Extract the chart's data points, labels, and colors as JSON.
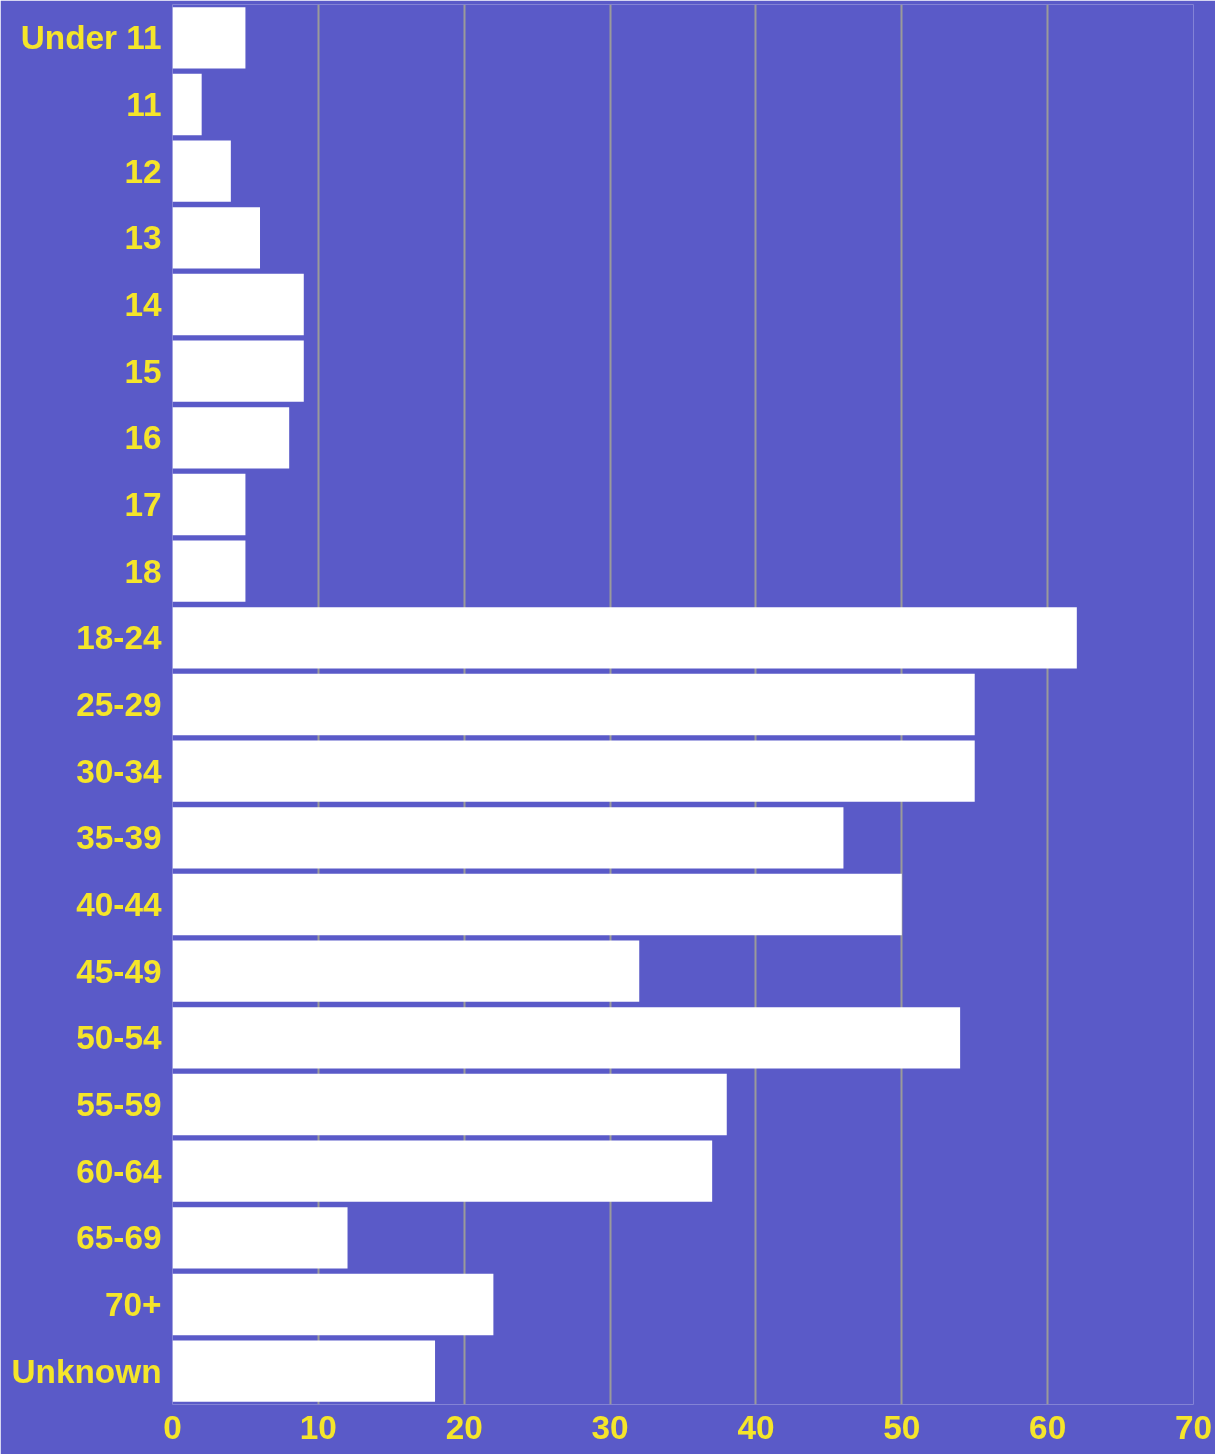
{
  "chart_data": {
    "type": "bar",
    "orientation": "horizontal",
    "categories": [
      "Under 11",
      "11",
      "12",
      "13",
      "14",
      "15",
      "16",
      "17",
      "18",
      "18-24",
      "25-29",
      "30-34",
      "35-39",
      "40-44",
      "45-49",
      "50-54",
      "55-59",
      "60-64",
      "65-69",
      "70+",
      "Unknown"
    ],
    "values": [
      5,
      2,
      4,
      6,
      9,
      9,
      8,
      5,
      5,
      62,
      55,
      55,
      46,
      50,
      32,
      54,
      38,
      37,
      12,
      22,
      18
    ],
    "color": "#ffffff",
    "xlim": [
      0,
      70
    ],
    "xticks": [
      0,
      10,
      20,
      30,
      40,
      50,
      60,
      70
    ],
    "grid": "x"
  }
}
